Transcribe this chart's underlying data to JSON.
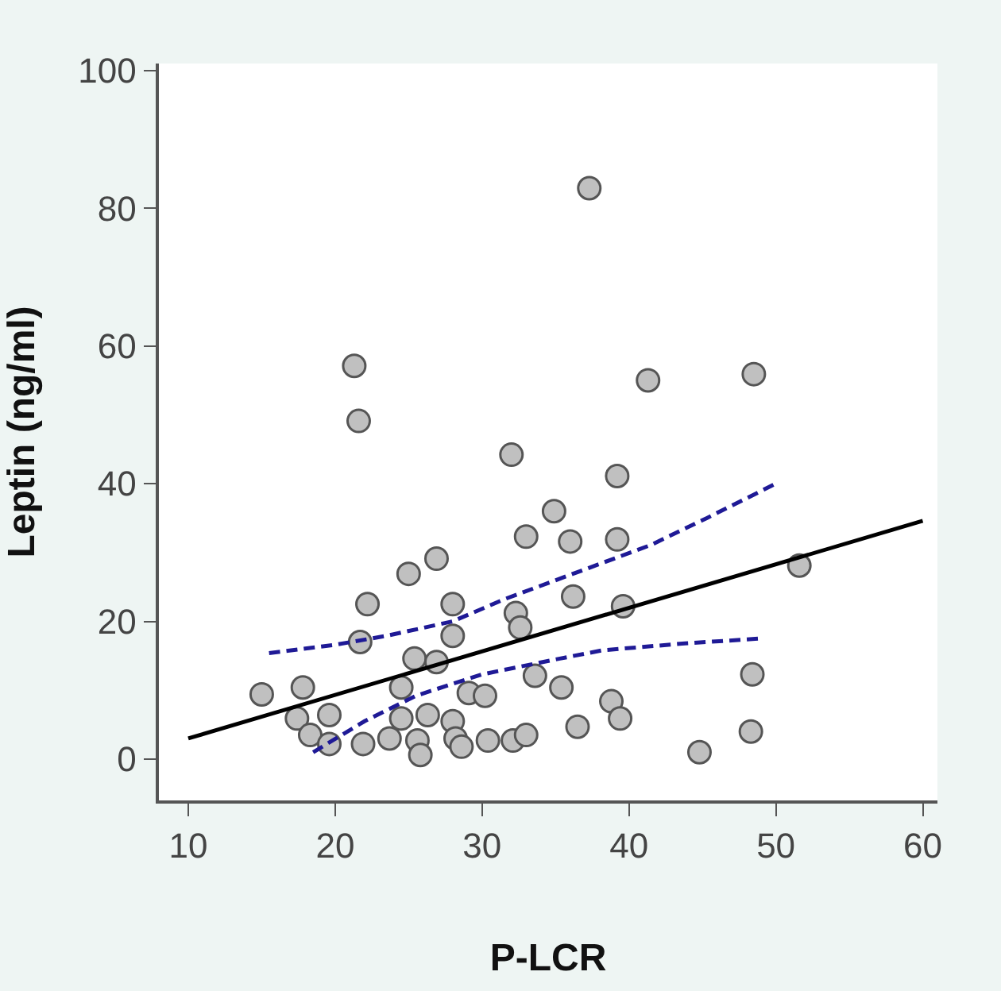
{
  "chart_data": {
    "type": "scatter",
    "xlabel": "P-LCR",
    "ylabel": "Leptin (ng/ml)",
    "xlim": [
      8,
      61
    ],
    "ylim": [
      -6,
      101
    ],
    "xticks": [
      10,
      20,
      30,
      40,
      50,
      60
    ],
    "yticks": [
      0,
      20,
      40,
      60,
      80,
      100
    ],
    "series": [
      {
        "marker": "circle",
        "color": "#c0c0c0",
        "x": [
          15.0,
          17.8,
          17.4,
          19.6,
          18.3,
          19.6,
          21.9,
          22.2,
          21.7,
          25.0,
          26.9,
          25.4,
          26.9,
          24.5,
          24.5,
          26.3,
          23.7,
          25.6,
          25.8,
          28.0,
          28.0,
          29.1,
          30.2,
          28.0,
          28.2,
          28.6,
          30.4,
          32.1,
          33.0,
          32.3,
          32.6,
          33.6,
          33.0,
          34.9,
          32.0,
          21.3,
          21.6,
          37.3,
          41.3,
          48.5,
          39.2,
          36.0,
          39.2,
          51.6,
          36.2,
          39.6,
          48.4,
          35.4,
          38.8,
          39.4,
          36.5,
          48.3,
          44.8
        ],
        "values": [
          9.4,
          10.4,
          5.9,
          6.4,
          3.5,
          2.2,
          2.2,
          22.5,
          17.0,
          26.9,
          29.1,
          14.6,
          14.1,
          10.4,
          5.9,
          6.4,
          3.0,
          2.7,
          0.6,
          22.5,
          17.9,
          9.6,
          9.2,
          5.5,
          3.0,
          1.8,
          2.7,
          2.7,
          3.5,
          21.2,
          19.1,
          12.1,
          32.3,
          36.0,
          44.2,
          57.1,
          49.1,
          82.9,
          55.0,
          55.9,
          41.1,
          31.6,
          31.9,
          28.1,
          23.6,
          22.2,
          12.3,
          10.4,
          8.4,
          5.9,
          4.7,
          4.0,
          1.0
        ]
      },
      {
        "type": "line",
        "marker": "none",
        "color": "#000000",
        "line_style": "solid",
        "x": [
          10,
          60
        ],
        "values": [
          3.0,
          34.6
        ]
      },
      {
        "type": "line",
        "marker": "none",
        "color": "#1f1a96",
        "line_style": "dashed",
        "x": [
          15.5,
          20,
          23.5,
          28,
          31.5,
          41.5,
          45.3,
          50
        ],
        "values": [
          15.4,
          16.6,
          17.9,
          20.0,
          23.2,
          31.1,
          35.0,
          40.0
        ]
      },
      {
        "type": "line",
        "marker": "none",
        "color": "#1f1a96",
        "line_style": "dashed",
        "x": [
          18.5,
          22,
          25.5,
          30,
          35.3,
          38.2,
          43.8,
          48.9
        ],
        "values": [
          1.0,
          5.5,
          9.2,
          12.3,
          14.6,
          15.8,
          16.8,
          17.5
        ]
      }
    ]
  }
}
